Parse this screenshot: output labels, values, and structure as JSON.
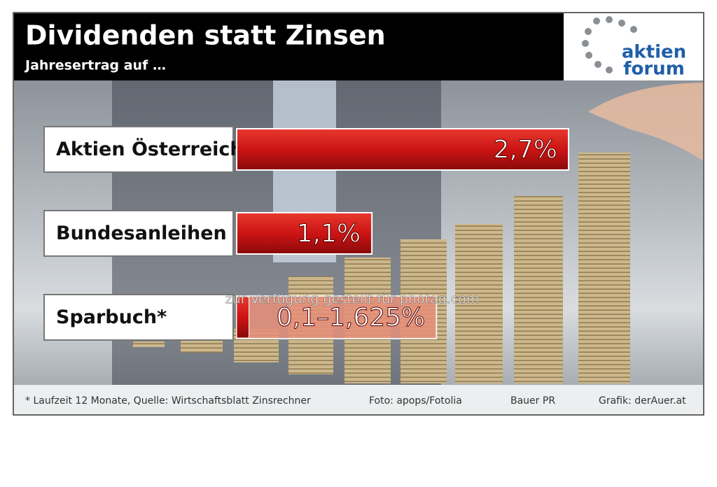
{
  "header": {
    "title": "Dividenden statt Zinsen",
    "subtitle": "Jahresertrag auf …"
  },
  "logo": {
    "line1": "aktien",
    "line2": "forum"
  },
  "chart_data": {
    "type": "bar",
    "orientation": "horizontal",
    "categories": [
      "Aktien Österreich",
      "Bundesanleihen",
      "Sparbuch*"
    ],
    "values": [
      2.7,
      1.1,
      0.1
    ],
    "range_high": [
      null,
      null,
      1.625
    ],
    "value_labels": [
      "2,7%",
      "1,1%",
      "0,1–1,625%"
    ],
    "color": "#d01818",
    "range_color": "#e8907a"
  },
  "footer": {
    "note": "* Laufzeit 12 Monate, Quelle: Wirtschaftsblatt Zinsrechner",
    "photo": "Foto: apops/Fotolia",
    "agency": "Bauer PR",
    "graphic": "Grafik: derAuer.at"
  },
  "watermark": "zur Verfügung gestellt für photaq.com"
}
